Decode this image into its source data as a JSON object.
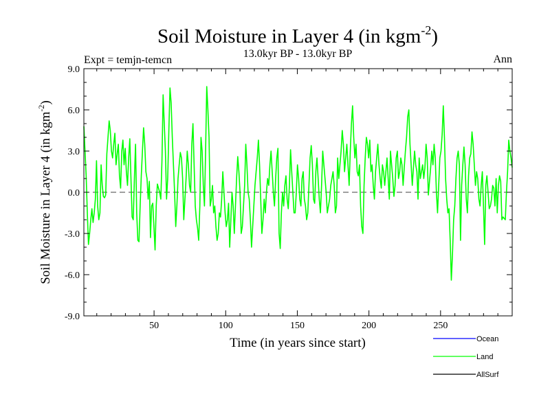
{
  "chart_data": {
    "type": "line",
    "title": "Soil Moisture in Layer 4 (in kgm",
    "title_sup": "-2",
    "title_close": ")",
    "subtitle_left": "Expt = temjn-temcn",
    "subtitle_center": "13.0kyr BP - 13.0kyr BP",
    "subtitle_right": "Ann",
    "xlabel": "Time (in years since start)",
    "ylabel": "Soil Moisture in Layer 4 (in kgm",
    "ylabel_sup": "-2",
    "ylabel_close": ")",
    "xlim": [
      1,
      300
    ],
    "ylim": [
      -9,
      9
    ],
    "xticks": [
      50,
      100,
      150,
      200,
      250
    ],
    "yticks": [
      9,
      6,
      3,
      0,
      -3,
      -6,
      -9
    ],
    "ytick_labels": [
      "9.0",
      "6.0",
      "3.0",
      "0.0",
      "-3.0",
      "-6.0",
      "-9.0"
    ],
    "reference_line": 0,
    "legend": [
      {
        "name": "Ocean",
        "color": "#0000ff"
      },
      {
        "name": "Land",
        "color": "#00ff00"
      },
      {
        "name": "AllSurf",
        "color": "#000000"
      }
    ],
    "series": [
      {
        "name": "Land",
        "color": "#00ff00",
        "x_start": 1,
        "values": [
          4.8,
          3.0,
          1.2,
          -1.5,
          -3.8,
          -3.0,
          -2.0,
          -1.2,
          -2.2,
          -1.5,
          -0.5,
          2.3,
          -1.0,
          -2.0,
          -1.5,
          2.0,
          0.5,
          -0.3,
          -0.4,
          -0.2,
          2.8,
          4.0,
          5.2,
          4.5,
          3.0,
          2.5,
          3.5,
          4.3,
          2.0,
          2.8,
          3.5,
          1.2,
          0.3,
          3.0,
          3.8,
          2.0,
          3.2,
          1.5,
          0.5,
          2.5,
          3.9,
          1.0,
          -1.8,
          -2.0,
          1.0,
          3.5,
          -1.5,
          -3.5,
          -3.6,
          -1.0,
          1.2,
          3.0,
          4.7,
          3.5,
          1.5,
          1.0,
          -0.5,
          0.8,
          -3.3,
          -1.0,
          -0.8,
          -2.5,
          -4.2,
          -1.0,
          0.6,
          0.3,
          0.0,
          -0.5,
          2.3,
          7.1,
          5.0,
          3.0,
          -0.5,
          1.0,
          4.5,
          7.6,
          6.5,
          4.0,
          2.0,
          0.0,
          -2.5,
          -1.0,
          1.0,
          2.0,
          2.9,
          2.5,
          1.0,
          -2.0,
          -0.5,
          1.0,
          3.0,
          2.0,
          0.5,
          0.0,
          3.5,
          5.0,
          2.0,
          -1.0,
          -2.0,
          -2.6,
          -3.5,
          -1.0,
          4.0,
          3.0,
          0.5,
          -1.0,
          3.0,
          7.7,
          6.0,
          4.0,
          -1.0,
          -0.5,
          0.5,
          -1.5,
          -1.0,
          -2.5,
          -3.5,
          -3.0,
          -1.5,
          -1.8,
          -0.5,
          1.5,
          0.0,
          -1.5,
          -2.5,
          -2.0,
          -0.8,
          -4.0,
          -2.0,
          0.0,
          -1.0,
          -3.0,
          -1.0,
          1.0,
          2.6,
          1.5,
          0.0,
          -3.0,
          -2.5,
          -1.0,
          0.5,
          3.5,
          2.0,
          0.0,
          -0.5,
          -2.0,
          -4.0,
          -2.5,
          -1.0,
          0.5,
          1.5,
          2.5,
          3.8,
          2.0,
          -0.5,
          -3.0,
          -2.0,
          -0.5,
          -1.5,
          0.0,
          1.0,
          0.5,
          2.0,
          3.0,
          1.5,
          0.0,
          -1.0,
          1.0,
          2.5,
          3.2,
          -3.0,
          -4.1,
          -1.5,
          0.0,
          -1.0,
          0.5,
          1.2,
          -0.5,
          -1.2,
          0.5,
          3.1,
          1.5,
          0.0,
          -1.5,
          -1.5,
          0.0,
          2.0,
          1.0,
          -0.5,
          -1.0,
          1.0,
          1.5,
          -0.5,
          -1.0,
          -2.0,
          -1.5,
          0.5,
          2.5,
          3.4,
          2.0,
          -0.5,
          -0.8,
          1.5,
          2.5,
          1.0,
          -0.5,
          -1.5,
          0.5,
          3.0,
          2.0,
          1.0,
          0.0,
          -1.5,
          -1.0,
          -0.5,
          0.5,
          1.0,
          1.5,
          0.5,
          -1.5,
          -1.0,
          2.5,
          1.0,
          2.0,
          3.0,
          4.5,
          3.5,
          1.5,
          2.5,
          3.5,
          2.0,
          0.5,
          3.0,
          5.0,
          6.3,
          4.0,
          2.5,
          3.5,
          1.5,
          1.2,
          2.0,
          -1.0,
          -2.5,
          -3.0,
          0.5,
          2.5,
          4.0,
          3.5,
          2.5,
          3.8,
          1.5,
          2.0,
          0.5,
          -0.5,
          1.5,
          2.5,
          3.5,
          2.0,
          1.0,
          0.3,
          2.0,
          1.5,
          0.5,
          1.5,
          2.5,
          1.0,
          -0.5,
          3.0,
          2.0,
          1.0,
          -0.3,
          0.5,
          2.5,
          3.0,
          1.0,
          1.5,
          2.5,
          2.0,
          0.5,
          1.8,
          3.0,
          4.0,
          5.5,
          6.0,
          3.5,
          2.0,
          0.5,
          1.8,
          3.0,
          2.0,
          1.5,
          -0.5,
          2.5,
          1.0,
          1.5,
          2.0,
          1.0,
          1.8,
          3.5,
          2.5,
          -0.2,
          0.8,
          1.8,
          3.0,
          2.0,
          3.5,
          2.5,
          0.0,
          -1.5,
          0.5,
          2.5,
          3.0,
          4.2,
          6.3,
          4.0,
          1.0,
          -0.5,
          -1.5,
          -1.2,
          -3.5,
          -6.4,
          -4.5,
          -2.0,
          -1.0,
          1.0,
          2.5,
          3.0,
          2.0,
          -3.5,
          0.5,
          2.0,
          3.3,
          2.0,
          -0.5,
          -1.5,
          1.2,
          2.5,
          2.8,
          4.4,
          3.5,
          2.0,
          0.5,
          1.5,
          1.0,
          -0.5,
          -1.0,
          0.5,
          1.5,
          -1.0,
          -3.8,
          0.5,
          1.2,
          0.0,
          -1.2,
          -1.0,
          -0.5,
          0.5,
          0.3,
          -1.0,
          1.0,
          -1.5,
          0.5,
          1.2,
          0.8,
          -2.0,
          -1.8,
          -1.9,
          -2.0,
          0.0,
          1.5,
          3.8,
          3.0,
          2.5,
          1.8
        ]
      }
    ]
  }
}
